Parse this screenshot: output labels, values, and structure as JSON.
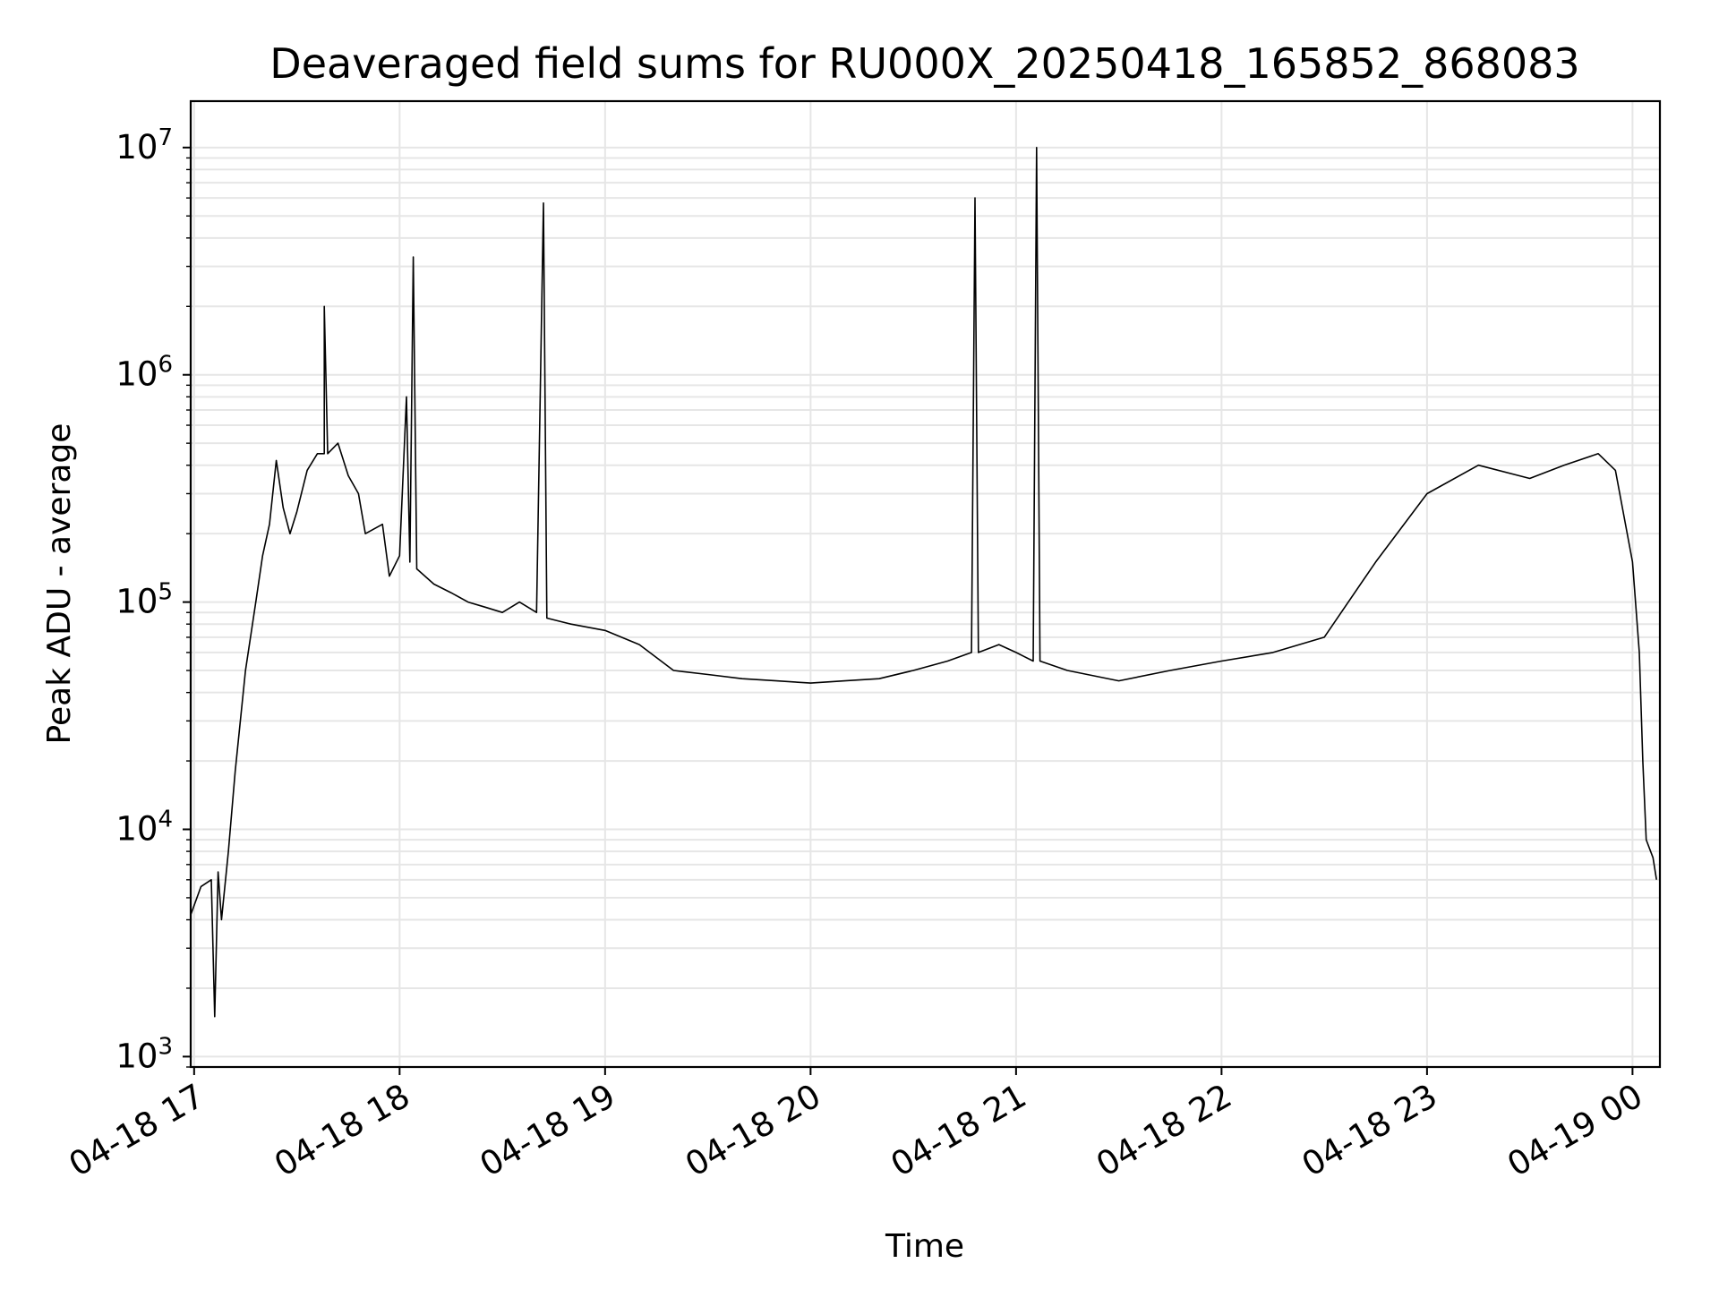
{
  "chart_data": {
    "type": "line",
    "title": "Deaveraged field sums for RU000X_20250418_165852_868083",
    "xlabel": "Time",
    "ylabel": "Peak ADU - average",
    "x_tick_labels": [
      "04-18 17",
      "04-18 18",
      "04-18 19",
      "04-18 20",
      "04-18 21",
      "04-18 22",
      "04-18 23",
      "04-19 00"
    ],
    "x_ticks": [
      "2025-04-18 17:00",
      "2025-04-18 18:00",
      "2025-04-18 19:00",
      "2025-04-18 20:00",
      "2025-04-18 21:00",
      "2025-04-18 22:00",
      "2025-04-18 23:00",
      "2025-04-19 00:00"
    ],
    "xlim": [
      "2025-04-18 16:59",
      "2025-04-19 00:08"
    ],
    "y_scale": "log",
    "ylim": [
      900,
      16000000
    ],
    "y_tick_labels": [
      {
        "base": "10",
        "exp": "3",
        "value": 1000
      },
      {
        "base": "10",
        "exp": "4",
        "value": 10000
      },
      {
        "base": "10",
        "exp": "5",
        "value": 100000
      },
      {
        "base": "10",
        "exp": "6",
        "value": 1000000
      },
      {
        "base": "10",
        "exp": "7",
        "value": 10000000
      }
    ],
    "grid": true,
    "line_color": "#000000",
    "grid_color": "#e6e6e6",
    "series": [
      {
        "points": [
          [
            "2025-04-18 16:59",
            4200
          ],
          [
            "2025-04-18 17:02",
            5600
          ],
          [
            "2025-04-18 17:05",
            6000
          ],
          [
            "2025-04-18 17:06",
            1500
          ],
          [
            "2025-04-18 17:07",
            6500
          ],
          [
            "2025-04-18 17:08",
            4000
          ],
          [
            "2025-04-18 17:10",
            8000
          ],
          [
            "2025-04-18 17:12",
            18000
          ],
          [
            "2025-04-18 17:15",
            50000
          ],
          [
            "2025-04-18 17:18",
            100000
          ],
          [
            "2025-04-18 17:20",
            160000
          ],
          [
            "2025-04-18 17:22",
            220000
          ],
          [
            "2025-04-18 17:24",
            420000
          ],
          [
            "2025-04-18 17:26",
            260000
          ],
          [
            "2025-04-18 17:28",
            200000
          ],
          [
            "2025-04-18 17:30",
            250000
          ],
          [
            "2025-04-18 17:33",
            380000
          ],
          [
            "2025-04-18 17:36",
            450000
          ],
          [
            "2025-04-18 17:38",
            450000
          ],
          [
            "2025-04-18 17:38",
            2000000
          ],
          [
            "2025-04-18 17:39",
            450000
          ],
          [
            "2025-04-18 17:42",
            500000
          ],
          [
            "2025-04-18 17:45",
            360000
          ],
          [
            "2025-04-18 17:48",
            300000
          ],
          [
            "2025-04-18 17:50",
            200000
          ],
          [
            "2025-04-18 17:55",
            220000
          ],
          [
            "2025-04-18 17:57",
            130000
          ],
          [
            "2025-04-18 18:00",
            160000
          ],
          [
            "2025-04-18 18:02",
            800000
          ],
          [
            "2025-04-18 18:03",
            150000
          ],
          [
            "2025-04-18 18:04",
            3300000
          ],
          [
            "2025-04-18 18:05",
            140000
          ],
          [
            "2025-04-18 18:10",
            120000
          ],
          [
            "2025-04-18 18:15",
            110000
          ],
          [
            "2025-04-18 18:20",
            100000
          ],
          [
            "2025-04-18 18:25",
            95000
          ],
          [
            "2025-04-18 18:30",
            90000
          ],
          [
            "2025-04-18 18:35",
            100000
          ],
          [
            "2025-04-18 18:40",
            90000
          ],
          [
            "2025-04-18 18:42",
            5700000
          ],
          [
            "2025-04-18 18:43",
            85000
          ],
          [
            "2025-04-18 18:50",
            80000
          ],
          [
            "2025-04-18 19:00",
            75000
          ],
          [
            "2025-04-18 19:10",
            65000
          ],
          [
            "2025-04-18 19:20",
            50000
          ],
          [
            "2025-04-18 19:30",
            48000
          ],
          [
            "2025-04-18 19:40",
            46000
          ],
          [
            "2025-04-18 19:50",
            45000
          ],
          [
            "2025-04-18 20:00",
            44000
          ],
          [
            "2025-04-18 20:10",
            45000
          ],
          [
            "2025-04-18 20:20",
            46000
          ],
          [
            "2025-04-18 20:30",
            50000
          ],
          [
            "2025-04-18 20:40",
            55000
          ],
          [
            "2025-04-18 20:47",
            60000
          ],
          [
            "2025-04-18 20:48",
            6000000
          ],
          [
            "2025-04-18 20:49",
            60000
          ],
          [
            "2025-04-18 20:55",
            65000
          ],
          [
            "2025-04-18 21:00",
            60000
          ],
          [
            "2025-04-18 21:05",
            55000
          ],
          [
            "2025-04-18 21:06",
            10000000
          ],
          [
            "2025-04-18 21:07",
            55000
          ],
          [
            "2025-04-18 21:15",
            50000
          ],
          [
            "2025-04-18 21:30",
            45000
          ],
          [
            "2025-04-18 21:45",
            50000
          ],
          [
            "2025-04-18 22:00",
            55000
          ],
          [
            "2025-04-18 22:15",
            60000
          ],
          [
            "2025-04-18 22:30",
            70000
          ],
          [
            "2025-04-18 22:45",
            150000
          ],
          [
            "2025-04-18 23:00",
            300000
          ],
          [
            "2025-04-18 23:15",
            400000
          ],
          [
            "2025-04-18 23:30",
            350000
          ],
          [
            "2025-04-18 23:40",
            400000
          ],
          [
            "2025-04-18 23:50",
            450000
          ],
          [
            "2025-04-18 23:55",
            380000
          ],
          [
            "2025-04-19 00:00",
            150000
          ],
          [
            "2025-04-19 00:02",
            60000
          ],
          [
            "2025-04-19 00:03",
            20000
          ],
          [
            "2025-04-19 00:04",
            9000
          ],
          [
            "2025-04-19 00:06",
            7500
          ],
          [
            "2025-04-19 00:07",
            6000
          ]
        ]
      }
    ]
  }
}
